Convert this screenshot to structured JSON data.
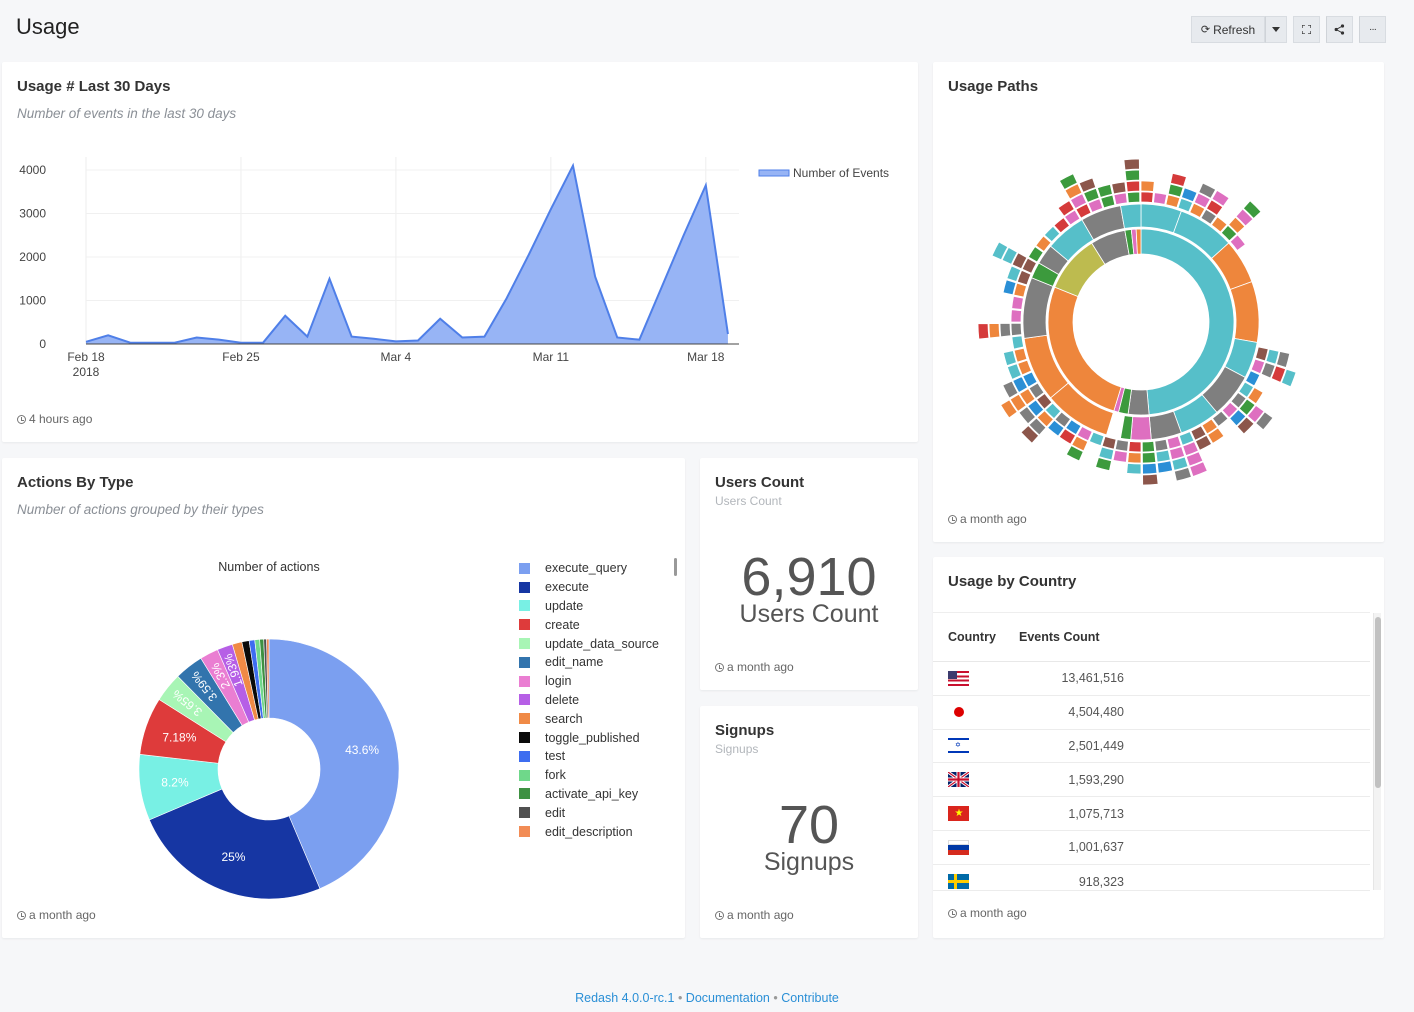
{
  "page": {
    "title": "Usage"
  },
  "toolbar": {
    "refresh_label": "Refresh",
    "more_label": "···"
  },
  "usage_30": {
    "title": "Usage # Last 30 Days",
    "subtitle": "Number of events in the last 30 days",
    "updated": "4 hours ago",
    "chart_data": {
      "type": "area",
      "series": [
        {
          "name": "Number of Events",
          "color": "#7b9ff0",
          "values": [
            50,
            200,
            30,
            30,
            30,
            150,
            100,
            30,
            30,
            650,
            170,
            1500,
            170,
            120,
            60,
            80,
            580,
            150,
            170,
            1050,
            2050,
            3100,
            4100,
            1550,
            150,
            100,
            1300,
            2500,
            3650,
            230
          ]
        }
      ],
      "x": [
        "Feb 18",
        "Feb 19",
        "Feb 20",
        "Feb 21",
        "Feb 22",
        "Feb 23",
        "Feb 24",
        "Feb 25",
        "Feb 26",
        "Feb 27",
        "Feb 28",
        "Mar 1",
        "Mar 2",
        "Mar 3",
        "Mar 4",
        "Mar 5",
        "Mar 6",
        "Mar 7",
        "Mar 8",
        "Mar 9",
        "Mar 10",
        "Mar 11",
        "Mar 12",
        "Mar 13",
        "Mar 14",
        "Mar 15",
        "Mar 16",
        "Mar 17",
        "Mar 18",
        "Mar 19"
      ],
      "x_ticks": [
        {
          "label": "Feb 18",
          "sub": "2018",
          "index": 0
        },
        {
          "label": "Feb 25",
          "sub": "",
          "index": 7
        },
        {
          "label": "Mar 4",
          "sub": "",
          "index": 14
        },
        {
          "label": "Mar 11",
          "sub": "",
          "index": 21
        },
        {
          "label": "Mar 18",
          "sub": "",
          "index": 28
        }
      ],
      "y_ticks": [
        0,
        1000,
        2000,
        3000,
        4000
      ],
      "ylim": [
        0,
        4300
      ],
      "legend": "top-right"
    }
  },
  "paths": {
    "title": "Usage Paths",
    "updated": "a month ago",
    "palette": [
      "#56bfc9",
      "#ee863c",
      "#7f7f7f",
      "#bdbb4f",
      "#de6fc0",
      "#3c9a3d",
      "#d53a3a",
      "#8c564b",
      "#9467bd",
      "#2a8fd6"
    ]
  },
  "actions": {
    "title": "Actions By Type",
    "subtitle": "Number of actions grouped by their types",
    "updated": "a month ago",
    "chart_data": {
      "type": "pie",
      "title": "Number of actions",
      "slices": [
        {
          "label": "execute_query",
          "value": 43.6,
          "pct": "43.6%",
          "color": "#7b9ff0"
        },
        {
          "label": "execute",
          "value": 25,
          "pct": "25%",
          "color": "#1636a3"
        },
        {
          "label": "update",
          "value": 8.2,
          "pct": "8.2%",
          "color": "#78f0e4"
        },
        {
          "label": "create",
          "value": 7.18,
          "pct": "7.18%",
          "color": "#de3b3b"
        },
        {
          "label": "update_data_source",
          "value": 3.65,
          "pct": "3.65%",
          "color": "#a8f5b5"
        },
        {
          "label": "edit_name",
          "value": 3.59,
          "pct": "3.59%",
          "color": "#3274ad"
        },
        {
          "label": "login",
          "value": 2.3,
          "pct": "2.3%",
          "color": "#ea7ed2"
        },
        {
          "label": "delete",
          "value": 1.93,
          "pct": "1.93%",
          "color": "#b65fe6"
        },
        {
          "label": "search",
          "value": 1.2,
          "pct": "",
          "color": "#f08a46"
        },
        {
          "label": "toggle_published",
          "value": 0.9,
          "pct": "",
          "color": "#0a0a0a"
        },
        {
          "label": "test",
          "value": 0.7,
          "pct": "",
          "color": "#3d6df0"
        },
        {
          "label": "fork",
          "value": 0.6,
          "pct": "",
          "color": "#6fd88a"
        },
        {
          "label": "activate_api_key",
          "value": 0.5,
          "pct": "",
          "color": "#3e9142"
        },
        {
          "label": "edit",
          "value": 0.35,
          "pct": "",
          "color": "#505050"
        },
        {
          "label": "edit_description",
          "value": 0.3,
          "pct": "",
          "color": "#f28c55"
        }
      ]
    }
  },
  "users_count": {
    "title": "Users Count",
    "subtitle": "Users Count",
    "value": "6,910",
    "label": "Users Count",
    "updated": "a month ago"
  },
  "signups": {
    "title": "Signups",
    "subtitle": "Signups",
    "value": "70",
    "label": "Signups",
    "updated": "a month ago"
  },
  "country": {
    "title": "Usage by Country",
    "updated": "a month ago",
    "col_country": "Country",
    "col_events": "Events Count",
    "rows": [
      {
        "flag": "us-flag-icon",
        "events": "13,461,516"
      },
      {
        "flag": "jp-flag-icon",
        "events": "4,504,480"
      },
      {
        "flag": "il-flag-icon",
        "events": "2,501,449"
      },
      {
        "flag": "gb-flag-icon",
        "events": "1,593,290"
      },
      {
        "flag": "vn-flag-icon",
        "events": "1,075,713"
      },
      {
        "flag": "ru-flag-icon",
        "events": "1,001,637"
      },
      {
        "flag": "se-flag-icon",
        "events": "918,323"
      }
    ]
  },
  "footer": {
    "version": "Redash 4.0.0-rc.1",
    "sep": " • ",
    "documentation": "Documentation",
    "contribute": "Contribute"
  }
}
